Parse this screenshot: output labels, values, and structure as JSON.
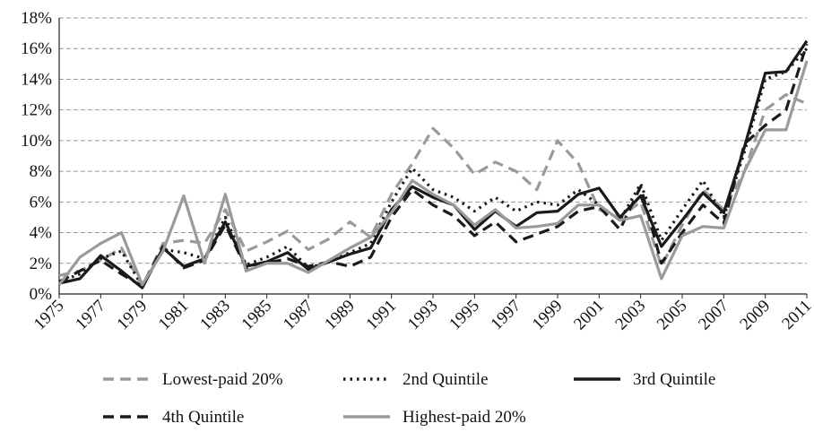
{
  "chart_data": {
    "type": "line",
    "x": [
      1975,
      1976,
      1977,
      1978,
      1979,
      1980,
      1981,
      1982,
      1983,
      1984,
      1985,
      1986,
      1987,
      1988,
      1989,
      1990,
      1991,
      1992,
      1993,
      1994,
      1995,
      1996,
      1997,
      1998,
      1999,
      2000,
      2001,
      2002,
      2003,
      2004,
      2005,
      2006,
      2007,
      2008,
      2009,
      2010,
      2011
    ],
    "xlim": [
      1975,
      2011
    ],
    "xticks": [
      1975,
      1977,
      1979,
      1981,
      1983,
      1985,
      1987,
      1989,
      1991,
      1993,
      1995,
      1997,
      1999,
      2001,
      2003,
      2005,
      2007,
      2009,
      2011
    ],
    "ylim": [
      0,
      18
    ],
    "yticks": [
      {
        "value": 0,
        "label": "0%"
      },
      {
        "value": 2,
        "label": "2%"
      },
      {
        "value": 4,
        "label": "4%"
      },
      {
        "value": 6,
        "label": "6%"
      },
      {
        "value": 8,
        "label": "8%"
      },
      {
        "value": 10,
        "label": "10%"
      },
      {
        "value": 12,
        "label": "12%"
      },
      {
        "value": 14,
        "label": "14%"
      },
      {
        "value": 16,
        "label": "16%"
      },
      {
        "value": 18,
        "label": "18%"
      }
    ],
    "grid": true,
    "legend": "bottom",
    "series": [
      {
        "name": "Lowest-paid 20%",
        "color": "#9a9a9a",
        "dash": "dashed",
        "values": [
          1.2,
          1.5,
          2.2,
          3.0,
          0.5,
          3.3,
          3.5,
          3.3,
          5.5,
          2.8,
          3.4,
          4.1,
          2.9,
          3.6,
          4.7,
          3.7,
          6.5,
          8.5,
          10.8,
          9.5,
          7.8,
          8.6,
          8.0,
          6.8,
          10.0,
          8.5,
          5.5,
          5.0,
          6.0,
          1.8,
          4.5,
          6.8,
          5.5,
          8.0,
          12.0,
          13.0,
          12.4
        ]
      },
      {
        "name": "2nd Quintile",
        "color": "#1a1a1a",
        "dash": "dotted",
        "values": [
          0.8,
          1.3,
          2.3,
          2.8,
          0.5,
          2.9,
          2.7,
          2.3,
          5.0,
          1.9,
          2.4,
          3.1,
          1.7,
          2.1,
          2.7,
          3.3,
          6.0,
          8.2,
          6.8,
          6.3,
          5.4,
          6.3,
          5.4,
          6.0,
          5.8,
          6.8,
          5.8,
          4.8,
          7.2,
          3.5,
          5.5,
          7.4,
          5.0,
          9.3,
          14.0,
          14.5,
          16.0
        ]
      },
      {
        "name": "3rd Quintile",
        "color": "#1a1a1a",
        "dash": "solid",
        "values": [
          0.7,
          1.0,
          2.5,
          1.5,
          0.4,
          3.0,
          1.8,
          2.3,
          4.7,
          1.8,
          2.1,
          2.7,
          1.6,
          2.1,
          2.6,
          3.0,
          5.5,
          7.0,
          6.3,
          5.8,
          4.2,
          5.4,
          4.4,
          5.3,
          5.4,
          6.5,
          6.9,
          5.0,
          6.4,
          3.1,
          4.8,
          6.6,
          5.3,
          9.6,
          14.4,
          14.5,
          16.5
        ]
      },
      {
        "name": "4th Quintile",
        "color": "#1a1a1a",
        "dash": "dashed",
        "values": [
          0.8,
          1.5,
          2.2,
          1.3,
          0.5,
          3.1,
          1.7,
          2.2,
          4.5,
          1.7,
          2.0,
          2.3,
          1.8,
          2.1,
          1.8,
          2.4,
          5.0,
          6.8,
          5.8,
          5.1,
          3.8,
          4.7,
          3.4,
          3.9,
          4.4,
          5.4,
          5.7,
          4.2,
          7.0,
          2.0,
          4.0,
          5.8,
          4.6,
          9.8,
          11.0,
          12.0,
          16.3
        ]
      },
      {
        "name": "Highest-paid 20%",
        "color": "#9a9a9a",
        "dash": "solid",
        "values": [
          0.6,
          2.4,
          3.3,
          4.0,
          0.6,
          2.8,
          6.4,
          2.0,
          6.5,
          1.5,
          2.0,
          2.0,
          1.4,
          2.2,
          3.0,
          3.7,
          5.3,
          7.4,
          6.5,
          5.8,
          4.5,
          5.5,
          4.3,
          4.4,
          4.6,
          5.8,
          5.8,
          4.8,
          5.1,
          1.0,
          3.8,
          4.4,
          4.3,
          8.0,
          10.7,
          10.7,
          15.2
        ]
      }
    ]
  }
}
